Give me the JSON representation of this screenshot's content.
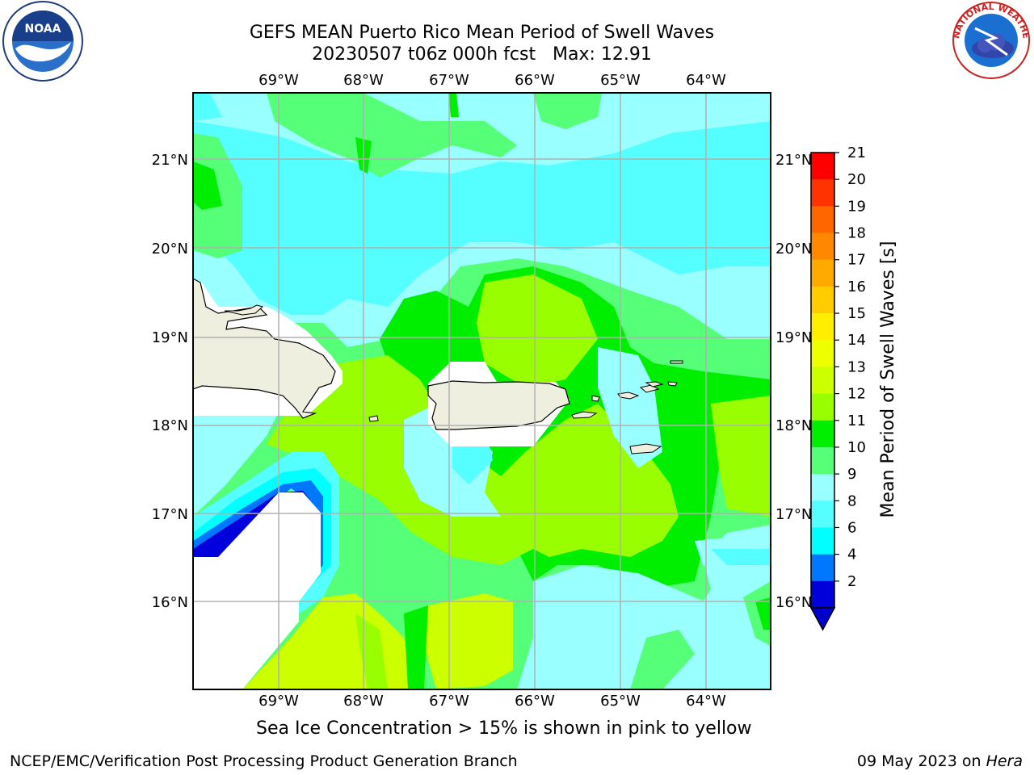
{
  "title": {
    "line1": "GEFS MEAN Puerto Rico Mean Period of Swell Waves",
    "line2": "20230507 t06z 000h fcst   Max: 12.91"
  },
  "logos": {
    "left": {
      "name": "NOAA",
      "ring_text": "NATIONAL OCEANIC AND ATMOSPHERIC ADMINISTRATION · U.S. DEPARTMENT OF COMMERCE"
    },
    "right": {
      "name": "NATIONAL WEATHER SERVICE"
    }
  },
  "map": {
    "lon_labels": [
      "69°W",
      "68°W",
      "67°W",
      "66°W",
      "65°W",
      "64°W"
    ],
    "lat_labels": [
      "21°N",
      "20°N",
      "19°N",
      "18°N",
      "17°N",
      "16°N"
    ],
    "grid": true
  },
  "colorbar": {
    "label": "Mean Period of Swell Waves [s]",
    "ticks": [
      "21",
      "20",
      "19",
      "18",
      "17",
      "16",
      "15",
      "14",
      "13",
      "12",
      "11",
      "10",
      "9",
      "8",
      "6",
      "4",
      "2"
    ],
    "colors": [
      "#ff0000",
      "#ff3300",
      "#ff6600",
      "#ff8800",
      "#ffaa00",
      "#ffcc00",
      "#ffee00",
      "#eeff00",
      "#ccff00",
      "#99ff00",
      "#00ee00",
      "#55ff77",
      "#99ffff",
      "#55ffff",
      "#00ffff",
      "#0077ff",
      "#0000dd"
    ],
    "extend_color": "#0000cc"
  },
  "note": "Sea Ice Concentration > 15% is shown in pink to yellow",
  "footer": {
    "left": "NCEP/EMC/Verification Post Processing Product Generation Branch",
    "right_prefix": "09 May 2023 on ",
    "right_italic": "Hera"
  }
}
